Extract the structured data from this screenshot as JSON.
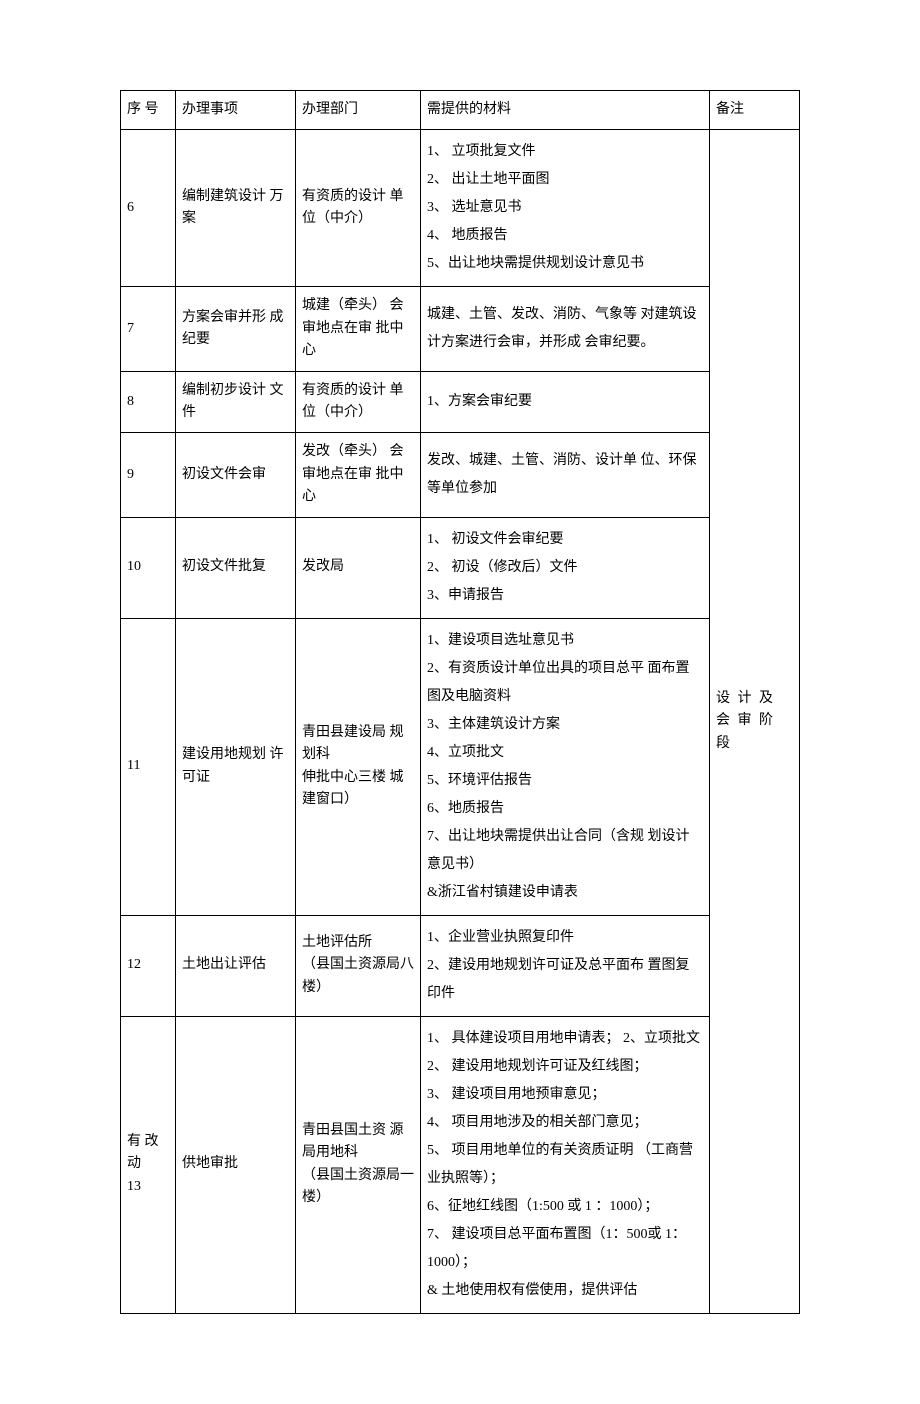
{
  "table": {
    "headers": {
      "seq": "序 号",
      "item": "办理事项",
      "dept": "办理部门",
      "material": "需提供的材料",
      "note": "备注"
    },
    "note_text": "设 计 及 会 审 阶 段",
    "rows": [
      {
        "seq": "6",
        "item": "编制建筑设计 万案",
        "dept": "有资质的设计 单位（中介）",
        "material": "1、 立项批复文件\n2、 出让土地平面图\n3、 选址意见书\n4、 地质报告\n5、出让地块需提供规划设计意见书"
      },
      {
        "seq": "7",
        "item": "方案会审并形 成纪要",
        "dept": "城建（牵头） 会审地点在审 批中心",
        "material": "城建、土管、发改、消防、气象等 对建筑设计方案进行会审，并形成 会审纪要。"
      },
      {
        "seq": "8",
        "item": "编制初步设计 文件",
        "dept": "有资质的设计 单位（中介）",
        "material": "1、方案会审纪要"
      },
      {
        "seq": "9",
        "item": "初设文件会审",
        "dept": "发改（牵头） 会审地点在审 批中心",
        "material": "发改、城建、土管、消防、设计单 位、环保等单位参加"
      },
      {
        "seq": "10",
        "item": "初设文件批复",
        "dept": "发改局",
        "material": "1、 初设文件会审纪要\n2、 初设（修改后）文件\n3、申请报告"
      },
      {
        "seq": "11",
        "item": "建设用地规划 许可证",
        "dept": "青田县建设局 规划科\n伸批中心三楼 城建窗口）",
        "material": "1、建设项目选址意见书\n2、有资质设计单位出具的项目总平 面布置图及电脑资料\n3、主体建筑设计方案\n4、立项批文\n5、环境评估报告\n6、地质报告\n7、出让地块需提供出让合同（含规 划设计意见书）\n&浙江省村镇建设申请表"
      },
      {
        "seq": "12",
        "item": "土地出让评估",
        "dept": "土地评估所\n（县国土资源局八楼）",
        "material": "1、企业营业执照复印件\n2、建设用地规划许可证及总平面布 置图复印件"
      },
      {
        "seq": "有 改动\n13",
        "item": "供地审批",
        "dept": "青田县国土资 源局用地科\n（县国土资源局一楼）",
        "material": "1、 具体建设项目用地申请表；   2、立项批文\n2、 建设用地规划许可证及红线图；\n3、 建设项目用地预审意见；\n4、 项目用地涉及的相关部门意见；\n5、  项目用地单位的有关资质证明 （工商营业执照等）；\n6、征地红线图（1:500 或 1 ：1000）；\n7、 建设项目总平面布置图（1：500或 1：1000）；\n& 土地使用权有偿使用，提供评估"
      }
    ]
  }
}
